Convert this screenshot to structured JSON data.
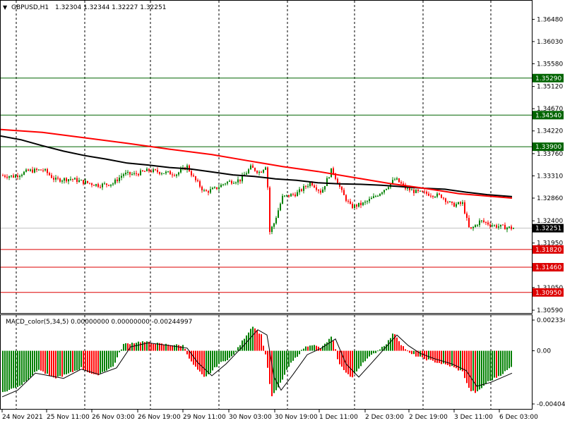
{
  "header": {
    "symbol_tf": "GBPUSD,H1",
    "ohlc": "1.32304 1.32344 1.32227 1.32251"
  },
  "macd_header": "MACD_color(5,34,5) 0.00000000 0.00000000 -0.00244997",
  "colors": {
    "bull": "#008000",
    "bear": "#ff0000",
    "ma_red": "#ff0000",
    "ma_black": "#000000",
    "level_green": "#006400",
    "level_red": "#dd0000",
    "current_price_line": "#c0c0c0",
    "grid": "#000000"
  },
  "chart_data": [
    {
      "type": "candlestick",
      "title": "GBPUSD,H1",
      "x_labels": [
        "24 Nov 2021",
        "25 Nov 11:00",
        "26 Nov 03:00",
        "26 Nov 19:00",
        "29 Nov 11:00",
        "30 Nov 03:00",
        "30 Nov 19:00",
        "1 Dec 11:00",
        "2 Dec 03:00",
        "2 Dec 19:00",
        "3 Dec 11:00",
        "6 Dec 03:00"
      ],
      "y_ticks": [
        "1.36480",
        "1.36030",
        "1.35580",
        "1.35120",
        "1.34670",
        "1.34220",
        "1.33760",
        "1.33310",
        "1.32860",
        "1.32400",
        "1.31950",
        "1.31500",
        "1.31050",
        "1.30590"
      ],
      "ylim": [
        1.3059,
        1.367
      ],
      "current_price": "1.32251",
      "current_price_value": 1.32251,
      "levels": [
        {
          "label": "1.35290",
          "value": 1.3529,
          "color": "green"
        },
        {
          "label": "1.34540",
          "value": 1.3454,
          "color": "green"
        },
        {
          "label": "1.33900",
          "value": 1.339,
          "color": "green"
        },
        {
          "label": "1.31820",
          "value": 1.3182,
          "color": "red"
        },
        {
          "label": "1.31460",
          "value": 1.3146,
          "color": "red"
        },
        {
          "label": "1.30950",
          "value": 1.3095,
          "color": "red"
        }
      ],
      "ma_red": [
        [
          0,
          1.3425
        ],
        [
          60,
          1.3419
        ],
        [
          120,
          1.3408
        ],
        [
          180,
          1.3397
        ],
        [
          240,
          1.3385
        ],
        [
          300,
          1.3374
        ],
        [
          350,
          1.3362
        ],
        [
          400,
          1.335
        ],
        [
          450,
          1.334
        ],
        [
          500,
          1.3328
        ],
        [
          550,
          1.3316
        ],
        [
          600,
          1.3306
        ],
        [
          650,
          1.3295
        ],
        [
          725,
          1.3286
        ]
      ],
      "ma_black": [
        [
          0,
          1.3412
        ],
        [
          30,
          1.3404
        ],
        [
          60,
          1.3392
        ],
        [
          90,
          1.3381
        ],
        [
          120,
          1.3372
        ],
        [
          150,
          1.3365
        ],
        [
          180,
          1.3357
        ],
        [
          210,
          1.3353
        ],
        [
          240,
          1.3348
        ],
        [
          270,
          1.3345
        ],
        [
          300,
          1.3339
        ],
        [
          330,
          1.3333
        ],
        [
          360,
          1.333
        ],
        [
          390,
          1.3325
        ],
        [
          420,
          1.3322
        ],
        [
          450,
          1.3317
        ],
        [
          480,
          1.3315
        ],
        [
          510,
          1.3314
        ],
        [
          540,
          1.3312
        ],
        [
          570,
          1.3309
        ],
        [
          600,
          1.3306
        ],
        [
          630,
          1.3304
        ],
        [
          660,
          1.3298
        ],
        [
          690,
          1.3293
        ],
        [
          725,
          1.3289
        ]
      ],
      "close_path": [
        [
          2,
          1.3332
        ],
        [
          20,
          1.333
        ],
        [
          40,
          1.3341
        ],
        [
          62,
          1.3343
        ],
        [
          78,
          1.3323
        ],
        [
          100,
          1.3325
        ],
        [
          120,
          1.3318
        ],
        [
          140,
          1.3312
        ],
        [
          160,
          1.3316
        ],
        [
          175,
          1.3335
        ],
        [
          190,
          1.3334
        ],
        [
          210,
          1.3342
        ],
        [
          230,
          1.3338
        ],
        [
          250,
          1.3335
        ],
        [
          265,
          1.335
        ],
        [
          275,
          1.3325
        ],
        [
          290,
          1.3298
        ],
        [
          305,
          1.3305
        ],
        [
          320,
          1.3318
        ],
        [
          340,
          1.3323
        ],
        [
          355,
          1.3348
        ],
        [
          368,
          1.3338
        ],
        [
          378,
          1.3355
        ],
        [
          381,
          1.3215
        ],
        [
          388,
          1.3235
        ],
        [
          400,
          1.3288
        ],
        [
          420,
          1.3295
        ],
        [
          440,
          1.3318
        ],
        [
          455,
          1.3298
        ],
        [
          470,
          1.3345
        ],
        [
          485,
          1.3295
        ],
        [
          497,
          1.3268
        ],
        [
          515,
          1.3275
        ],
        [
          530,
          1.3288
        ],
        [
          545,
          1.3305
        ],
        [
          560,
          1.3325
        ],
        [
          575,
          1.3305
        ],
        [
          590,
          1.3298
        ],
        [
          605,
          1.3295
        ],
        [
          625,
          1.329
        ],
        [
          640,
          1.3272
        ],
        [
          655,
          1.3275
        ],
        [
          665,
          1.322
        ],
        [
          680,
          1.324
        ],
        [
          700,
          1.323
        ],
        [
          715,
          1.3227
        ],
        [
          727,
          1.3225
        ]
      ]
    },
    {
      "type": "bar",
      "title": "MACD_color(5,34,5)",
      "y_ticks": [
        "0.0023344",
        "0.00",
        "-0.004044"
      ],
      "ylim": [
        -0.004044,
        0.0023344
      ],
      "histogram": [
        [
          3,
          -0.0032
        ],
        [
          30,
          -0.0026
        ],
        [
          55,
          -0.0014
        ],
        [
          75,
          -0.0021
        ],
        [
          95,
          -0.0018
        ],
        [
          115,
          -0.0013
        ],
        [
          135,
          -0.0019
        ],
        [
          160,
          -0.0012
        ],
        [
          175,
          0.0005
        ],
        [
          200,
          0.0007
        ],
        [
          230,
          0.0005
        ],
        [
          260,
          0.0004
        ],
        [
          270,
          -0.0008
        ],
        [
          290,
          -0.0021
        ],
        [
          310,
          -0.001
        ],
        [
          330,
          -0.0004
        ],
        [
          345,
          0.0009
        ],
        [
          358,
          0.0019
        ],
        [
          370,
          0.0012
        ],
        [
          378,
          -0.0008
        ],
        [
          384,
          -0.0035
        ],
        [
          392,
          -0.003
        ],
        [
          410,
          -0.0011
        ],
        [
          430,
          0.0002
        ],
        [
          440,
          0.0005
        ],
        [
          455,
          0.0002
        ],
        [
          470,
          0.0011
        ],
        [
          480,
          -0.001
        ],
        [
          498,
          -0.0021
        ],
        [
          515,
          -0.0008
        ],
        [
          530,
          -0.0002
        ],
        [
          548,
          0.0006
        ],
        [
          558,
          0.0014
        ],
        [
          568,
          0.0005
        ],
        [
          580,
          -0.0002
        ],
        [
          600,
          -0.0006
        ],
        [
          620,
          -0.0009
        ],
        [
          640,
          -0.0012
        ],
        [
          655,
          -0.0016
        ],
        [
          665,
          -0.003
        ],
        [
          675,
          -0.0032
        ],
        [
          690,
          -0.0024
        ],
        [
          710,
          -0.0018
        ],
        [
          725,
          -0.0012
        ]
      ],
      "signal": [
        [
          3,
          -0.0035
        ],
        [
          25,
          -0.003
        ],
        [
          50,
          -0.0017
        ],
        [
          70,
          -0.0019
        ],
        [
          90,
          -0.0021
        ],
        [
          115,
          -0.0014
        ],
        [
          140,
          -0.0018
        ],
        [
          165,
          -0.0013
        ],
        [
          185,
          0.0003
        ],
        [
          210,
          0.0006
        ],
        [
          240,
          0.0004
        ],
        [
          265,
          0.0002
        ],
        [
          280,
          -0.0009
        ],
        [
          300,
          -0.0019
        ],
        [
          320,
          -0.001
        ],
        [
          345,
          0.0004
        ],
        [
          365,
          0.0016
        ],
        [
          378,
          0.0012
        ],
        [
          388,
          -0.002
        ],
        [
          398,
          -0.003
        ],
        [
          415,
          -0.0018
        ],
        [
          435,
          -0.0003
        ],
        [
          455,
          0.0002
        ],
        [
          475,
          0.0009
        ],
        [
          490,
          -0.001
        ],
        [
          508,
          -0.002
        ],
        [
          525,
          -0.001
        ],
        [
          545,
          0.0002
        ],
        [
          562,
          0.0012
        ],
        [
          578,
          0.0004
        ],
        [
          595,
          -0.0002
        ],
        [
          615,
          -0.0006
        ],
        [
          640,
          -0.001
        ],
        [
          660,
          -0.0015
        ],
        [
          675,
          -0.0027
        ],
        [
          695,
          -0.0024
        ],
        [
          725,
          -0.0017
        ]
      ]
    }
  ]
}
